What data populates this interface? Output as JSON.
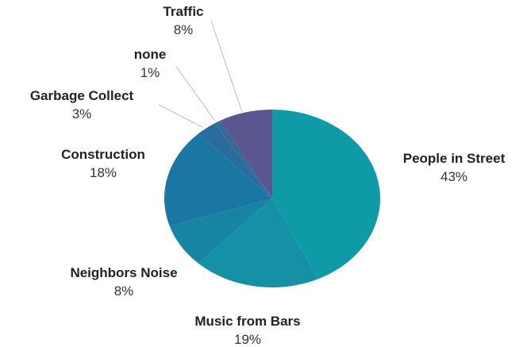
{
  "chart_data": {
    "type": "pie",
    "title": "",
    "start_angle_deg": 0,
    "direction": "clockwise",
    "slices": [
      {
        "name": "People in Street",
        "value": 43,
        "label": "43%",
        "color": "#0e9aa7"
      },
      {
        "name": "Music from Bars",
        "value": 19,
        "label": "19%",
        "color": "#1590a5"
      },
      {
        "name": "Neighbors Noise",
        "value": 8,
        "label": "8%",
        "color": "#1684a3"
      },
      {
        "name": "Construction",
        "value": 18,
        "label": "18%",
        "color": "#1a76a3"
      },
      {
        "name": "Garbage Collect",
        "value": 3,
        "label": "3%",
        "color": "#2a6d9c"
      },
      {
        "name": "none",
        "value": 1,
        "label": "1%",
        "color": "#3a6898"
      },
      {
        "name": "Traffic",
        "value": 8,
        "label": "8%",
        "color": "#5b5590"
      }
    ]
  }
}
